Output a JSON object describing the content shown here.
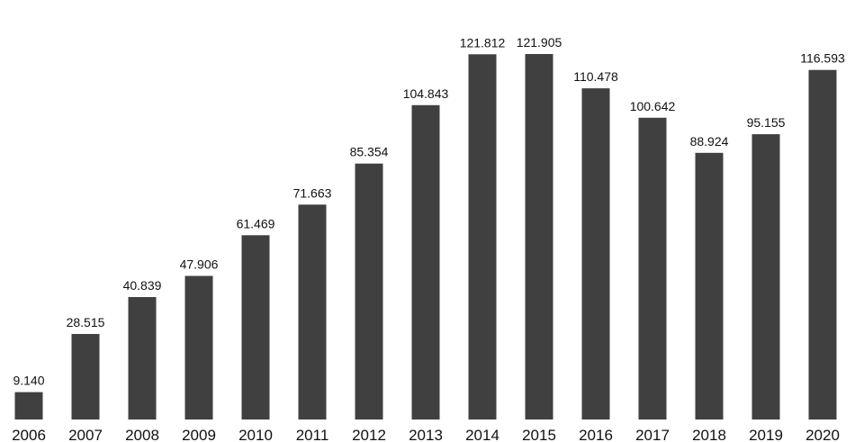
{
  "chart_data": {
    "type": "bar",
    "title": "",
    "xlabel": "",
    "ylabel": "",
    "categories": [
      "2006",
      "2007",
      "2008",
      "2009",
      "2010",
      "2011",
      "2012",
      "2013",
      "2014",
      "2015",
      "2016",
      "2017",
      "2018",
      "2019",
      "2020"
    ],
    "values": [
      9.14,
      28.515,
      40.839,
      47.906,
      61.469,
      71.663,
      85.354,
      104.843,
      121.812,
      121.905,
      110.478,
      100.642,
      88.924,
      95.155,
      116.593
    ],
    "value_labels": [
      "9.140",
      "28.515",
      "40.839",
      "47.906",
      "61.469",
      "71.663",
      "85.354",
      "104.843",
      "121.812",
      "121.905",
      "110.478",
      "100.642",
      "88.924",
      "95.155",
      "116.593"
    ],
    "ylim": [
      0,
      121.905
    ],
    "grid": false,
    "legend": "none",
    "bar_color": "#404040"
  }
}
